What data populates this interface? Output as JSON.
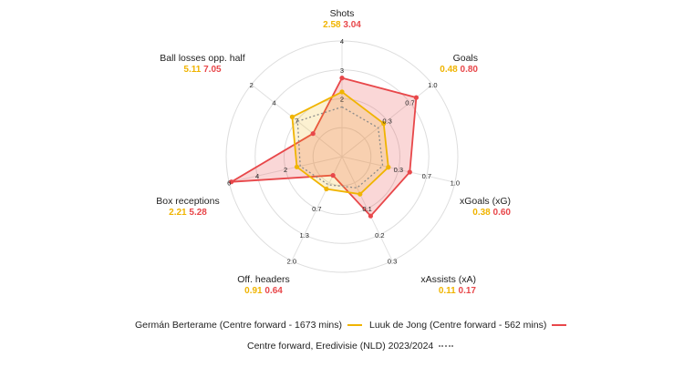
{
  "chart_data": {
    "type": "radar",
    "colors": {
      "series_a": "#f0b400",
      "series_b": "#e8474a",
      "baseline": "#8a8a8a"
    },
    "axes": [
      {
        "label": "Shots",
        "value_a": "2.58",
        "value_b": "3.04",
        "ticks": [
          "2",
          "3",
          "4"
        ]
      },
      {
        "label": "Goals",
        "value_a": "0.48",
        "value_b": "0.80",
        "ticks": [
          "0.3",
          "0.7",
          "1.0"
        ]
      },
      {
        "label": "xGoals (xG)",
        "value_a": "0.38",
        "value_b": "0.60",
        "ticks": [
          "0.3",
          "0.7",
          "1.0"
        ]
      },
      {
        "label": "xAssists (xA)",
        "value_a": "0.11",
        "value_b": "0.17",
        "ticks": [
          "0.1",
          "0.2",
          "0.3"
        ]
      },
      {
        "label": "Off. headers",
        "value_a": "0.91",
        "value_b": "0.64",
        "ticks": [
          "0.7",
          "1.3",
          "2.0"
        ]
      },
      {
        "label": "Box receptions",
        "value_a": "2.21",
        "value_b": "5.28",
        "ticks": [
          "2",
          "4",
          "6"
        ]
      },
      {
        "label": "Ball losses opp. half",
        "value_a": "5.11",
        "value_b": "7.05",
        "ticks": [
          "7",
          "4",
          "2"
        ]
      }
    ],
    "series": [
      {
        "name": "Germán Berterame (Centre forward - 1673 mins)",
        "values": [
          0.56,
          0.46,
          0.41,
          0.36,
          0.31,
          0.4,
          0.55
        ],
        "style": "solid",
        "color": "#f0b400"
      },
      {
        "name": "Luuk de Jong (Centre forward - 562 mins)",
        "values": [
          0.68,
          0.82,
          0.6,
          0.57,
          0.18,
          0.98,
          0.32
        ],
        "style": "solid",
        "color": "#e8474a"
      },
      {
        "name": "Centre forward, Eredivisie (NLD) 2023/2024",
        "values": [
          0.43,
          0.4,
          0.36,
          0.3,
          0.27,
          0.37,
          0.49
        ],
        "style": "dotted",
        "color": "#8a8a8a"
      }
    ]
  },
  "legend": {
    "series_a": "Germán Berterame (Centre forward - 1673 mins)",
    "series_b": "Luuk de Jong (Centre forward - 562 mins)",
    "baseline": "Centre forward, Eredivisie (NLD) 2023/2024"
  }
}
